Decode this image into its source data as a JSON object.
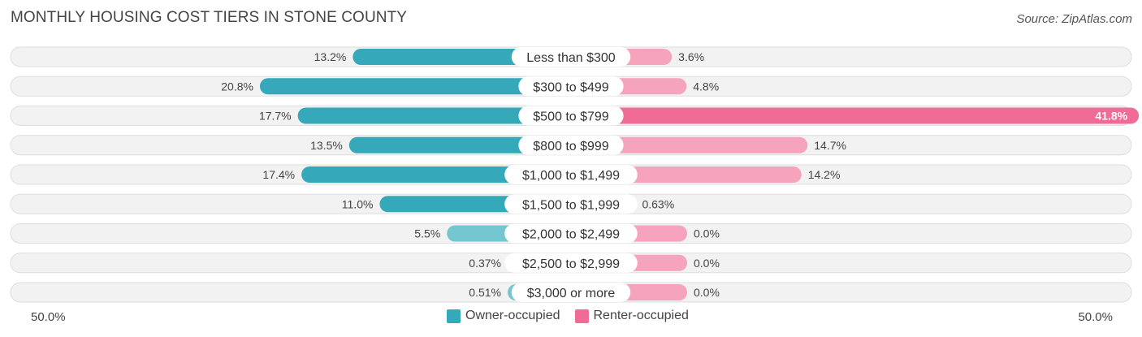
{
  "title": "MONTHLY HOUSING COST TIERS IN STONE COUNTY",
  "source": "Source: ZipAtlas.com",
  "colors": {
    "owner": "#35a9b9",
    "owner_light": "#74c7d1",
    "renter": "#f06b95",
    "renter_light": "#f6a3be",
    "track": "#f2f2f2",
    "track_border": "#dedede"
  },
  "chart_data": {
    "type": "bar",
    "orientation": "diverging-horizontal",
    "title": "MONTHLY HOUSING COST TIERS IN STONE COUNTY",
    "categories": [
      "Less than $300",
      "$300 to $499",
      "$500 to $799",
      "$800 to $999",
      "$1,000 to $1,499",
      "$1,500 to $1,999",
      "$2,000 to $2,499",
      "$2,500 to $2,999",
      "$3,000 or more"
    ],
    "series": [
      {
        "name": "Owner-occupied",
        "values": [
          13.2,
          20.8,
          17.7,
          13.5,
          17.4,
          11.0,
          5.5,
          0.37,
          0.51
        ],
        "labels": [
          "13.2%",
          "20.8%",
          "17.7%",
          "13.5%",
          "17.4%",
          "11.0%",
          "5.5%",
          "0.37%",
          "0.51%"
        ]
      },
      {
        "name": "Renter-occupied",
        "values": [
          3.6,
          4.8,
          41.8,
          14.7,
          14.2,
          0.63,
          0.0,
          0.0,
          0.0
        ],
        "labels": [
          "3.6%",
          "4.8%",
          "41.8%",
          "14.7%",
          "14.2%",
          "0.63%",
          "0.0%",
          "0.0%",
          "0.0%"
        ]
      }
    ],
    "xlim": [
      -50,
      50
    ],
    "axis_labels": {
      "left": "50.0%",
      "right": "50.0%"
    },
    "legend": [
      "Owner-occupied",
      "Renter-occupied"
    ]
  }
}
